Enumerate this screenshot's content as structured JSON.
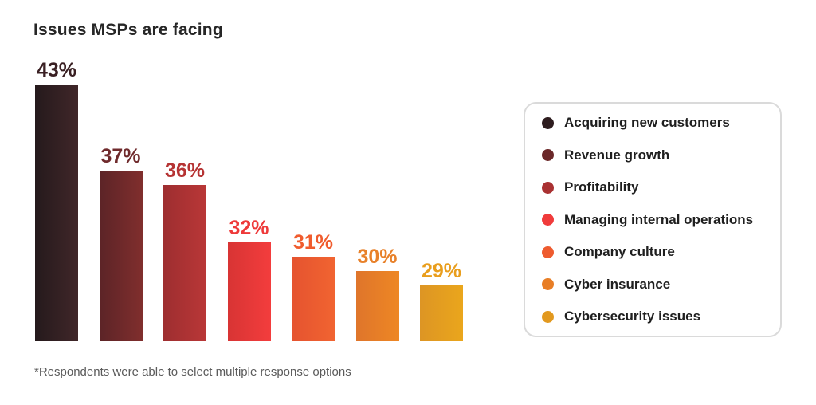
{
  "title": "Issues MSPs are facing",
  "footnote": "*Respondents were able to select multiple response options",
  "chart_data": {
    "type": "bar",
    "title": "Issues MSPs are facing",
    "categories": [
      "Acquiring new customers",
      "Revenue growth",
      "Profitability",
      "Managing internal operations",
      "Company culture",
      "Cyber insurance",
      "Cybersecurity issues"
    ],
    "values": [
      43,
      37,
      36,
      32,
      31,
      30,
      29
    ],
    "value_labels": [
      "43%",
      "37%",
      "36%",
      "32%",
      "31%",
      "30%",
      "29%"
    ],
    "colors": [
      {
        "gradient_from": "#251a1c",
        "gradient_to": "#402629",
        "label": "#3a2023",
        "dot": "#2e1d1f"
      },
      {
        "gradient_from": "#5c2427",
        "gradient_to": "#802e2d",
        "label": "#6f2a2c",
        "dot": "#6b2829"
      },
      {
        "gradient_from": "#9e2e30",
        "gradient_to": "#b93737",
        "label": "#b63434",
        "dot": "#a93132"
      },
      {
        "gradient_from": "#d83434",
        "gradient_to": "#f33d3d",
        "label": "#ee3939",
        "dot": "#f03b3b"
      },
      {
        "gradient_from": "#e5532f",
        "gradient_to": "#f16431",
        "label": "#f05c2e",
        "dot": "#ee5b2f"
      },
      {
        "gradient_from": "#df752b",
        "gradient_to": "#ee8724",
        "label": "#e8812a",
        "dot": "#e87e26"
      },
      {
        "gradient_from": "#dd9524",
        "gradient_to": "#eaa61c",
        "label": "#e99e1d",
        "dot": "#e2991f"
      }
    ],
    "xlabel": "",
    "ylabel": "",
    "ylim": [
      25.1,
      43
    ],
    "grid": false,
    "axes_visible": false,
    "value_labels_position": "above-bar",
    "legend_position": "right"
  }
}
